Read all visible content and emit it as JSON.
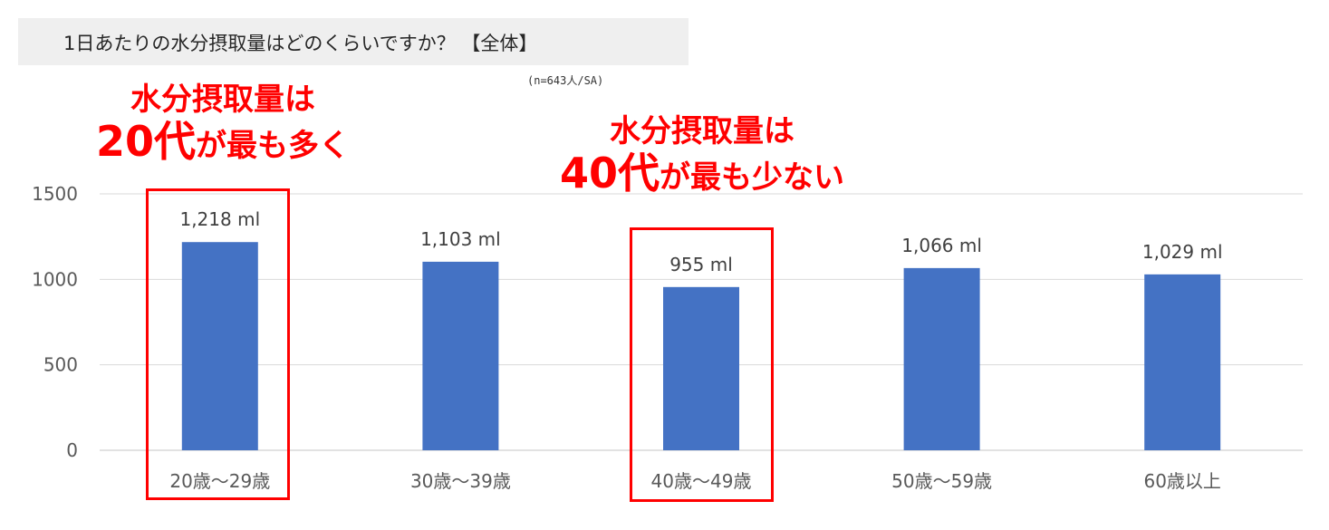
{
  "title_bar": {
    "title": "1日あたりの水分摂取量はどのくらいですか？ 【全体】"
  },
  "sample_note": "(n=643人/SA)",
  "callouts": [
    {
      "line1": "水分摂取量は",
      "line2_big": "20代",
      "line2_rest": "が最も多く"
    },
    {
      "line1": "水分摂取量は",
      "line2_big": "40代",
      "line2_rest": "が最も少ない"
    }
  ],
  "colors": {
    "bar": "#4472c4",
    "highlight": "#ff0000",
    "grid": "#d9d9d9",
    "axis_text": "#595959",
    "label_text": "#404040"
  },
  "chart_data": {
    "type": "bar",
    "title": "1日あたりの水分摂取量はどのくらいですか？ 【全体】",
    "categories": [
      "20歳～29歳",
      "30歳～39歳",
      "40歳～49歳",
      "50歳～59歳",
      "60歳以上"
    ],
    "values": [
      1218,
      1103,
      955,
      1066,
      1029
    ],
    "data_labels": [
      "1,218 ml",
      "1,103 ml",
      "955 ml",
      "1,066 ml",
      "1,029 ml"
    ],
    "y_ticks": [
      0,
      500,
      1000,
      1500
    ],
    "ylim": [
      0,
      1500
    ],
    "xlabel": "",
    "ylabel": "",
    "grid": true,
    "legend": "none",
    "highlighted_categories": [
      "20歳～29歳",
      "40歳～49歳"
    ]
  }
}
